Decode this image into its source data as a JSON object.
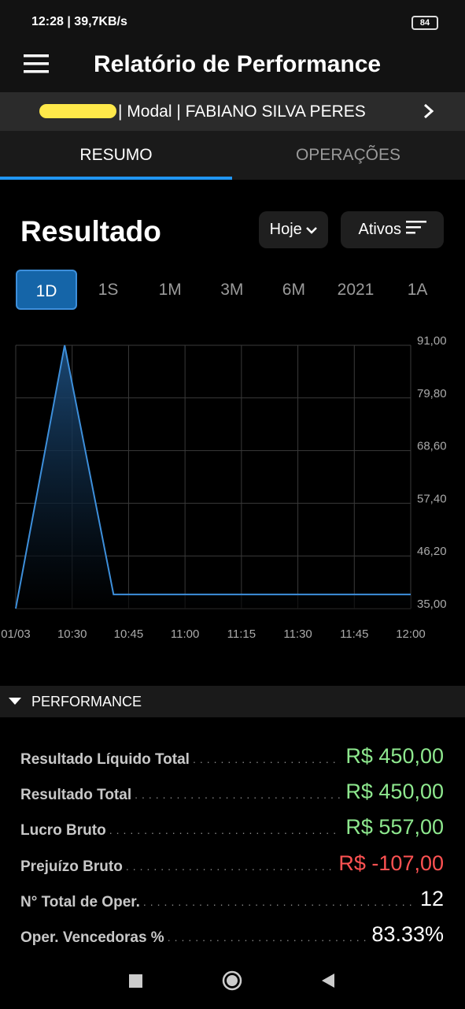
{
  "status_bar": {
    "time": "12:28 | 39,7KB/s",
    "battery": "84"
  },
  "header": {
    "title": "Relatório de Performance"
  },
  "account": {
    "label": "| Modal | FABIANO SILVA PERES"
  },
  "tabs": [
    {
      "label": "RESUMO",
      "active": true
    },
    {
      "label": "OPERAÇÕES",
      "active": false
    }
  ],
  "section_title": "Resultado",
  "filters": [
    "Hoje",
    "Ativos"
  ],
  "periods": [
    {
      "label": "1D",
      "active": true
    },
    {
      "label": "1S",
      "active": false
    },
    {
      "label": "1M",
      "active": false
    },
    {
      "label": "3M",
      "active": false
    },
    {
      "label": "6M",
      "active": false
    },
    {
      "label": "2021",
      "active": false
    },
    {
      "label": "1A",
      "active": false
    }
  ],
  "chart_data": {
    "type": "area",
    "x": [
      615,
      628,
      641,
      720
    ],
    "values": [
      35,
      91,
      38,
      38
    ],
    "color": "#3d8fdb",
    "xlim": [
      615,
      720
    ],
    "xticks": [
      {
        "value": 615,
        "label": "01/03"
      },
      {
        "value": 630,
        "label": "10:30"
      },
      {
        "value": 645,
        "label": "10:45"
      },
      {
        "value": 660,
        "label": "11:00"
      },
      {
        "value": 675,
        "label": "11:15"
      },
      {
        "value": 690,
        "label": "11:30"
      },
      {
        "value": 705,
        "label": "11:45"
      },
      {
        "value": 720,
        "label": "12:00"
      }
    ],
    "ylim": [
      35,
      91
    ],
    "yticks": [
      {
        "value": 35,
        "label": "35,00"
      },
      {
        "value": 46.2,
        "label": "46,20"
      },
      {
        "value": 57.4,
        "label": "57,40"
      },
      {
        "value": 68.6,
        "label": "68,60"
      },
      {
        "value": 79.8,
        "label": "79,80"
      },
      {
        "value": 91,
        "label": "91,00"
      }
    ],
    "grid": true
  },
  "performance": {
    "title": "PERFORMANCE",
    "rows": [
      {
        "label": "Resultado Líquido Total",
        "value": "R$ 450,00",
        "color": "#8ee88e"
      },
      {
        "label": "Resultado Total",
        "value": "R$ 450,00",
        "color": "#8ee88e"
      },
      {
        "label": "Lucro Bruto",
        "value": "R$ 557,00",
        "color": "#8ee88e"
      },
      {
        "label": "Prejuízo Bruto",
        "value": "R$ -107,00",
        "color": "#ff5252"
      },
      {
        "label": "N° Total de Oper.",
        "value": "12",
        "color": "#ffffff"
      },
      {
        "label": "Oper. Vencedoras %",
        "value": "83.33%",
        "color": "#ffffff"
      }
    ]
  }
}
